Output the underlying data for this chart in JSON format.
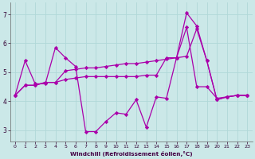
{
  "xlabel": "Windchill (Refroidissement éolien,°C)",
  "background_color": "#cbe8e8",
  "grid_color": "#b0d8d8",
  "line_color": "#aa00aa",
  "xlim": [
    -0.5,
    23.5
  ],
  "ylim": [
    2.6,
    7.4
  ],
  "xticks": [
    0,
    1,
    2,
    3,
    4,
    5,
    6,
    7,
    8,
    9,
    10,
    11,
    12,
    13,
    14,
    15,
    16,
    17,
    18,
    19,
    20,
    21,
    22,
    23
  ],
  "yticks": [
    3,
    4,
    5,
    6,
    7
  ],
  "series": [
    [
      4.2,
      5.4,
      4.6,
      4.6,
      5.85,
      5.5,
      5.2,
      2.95,
      2.95,
      3.3,
      3.6,
      3.55,
      4.05,
      3.1,
      4.15,
      4.1,
      5.5,
      7.05,
      6.6,
      5.4,
      4.05,
      4.15,
      4.2,
      4.2
    ],
    [
      4.2,
      4.55,
      4.55,
      4.65,
      4.65,
      4.75,
      4.8,
      4.85,
      4.85,
      4.85,
      4.85,
      4.85,
      4.85,
      4.9,
      4.9,
      5.5,
      5.5,
      6.55,
      4.5,
      4.5,
      4.1,
      4.15,
      4.2,
      4.2
    ],
    [
      4.2,
      4.55,
      4.55,
      4.65,
      4.65,
      5.05,
      5.1,
      5.15,
      5.15,
      5.2,
      5.25,
      5.3,
      5.3,
      5.35,
      5.4,
      5.45,
      5.5,
      5.55,
      6.5,
      5.4,
      4.05,
      4.15,
      4.2,
      4.2
    ]
  ]
}
